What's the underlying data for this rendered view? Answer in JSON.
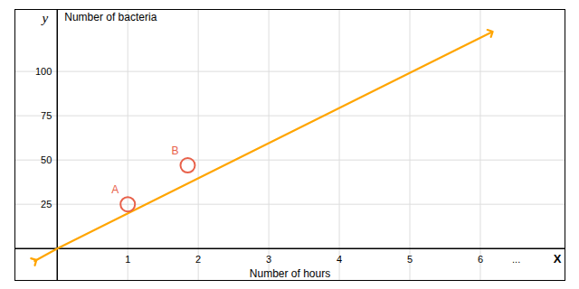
{
  "chart_data": {
    "type": "line",
    "xlabel": "Number of hours",
    "ylabel": "Number of bacteria",
    "xlim": [
      -0.6,
      7.2
    ],
    "ylim": [
      -18,
      135
    ],
    "xticks": [
      1,
      2,
      3,
      4,
      5,
      6
    ],
    "yticks": [
      25,
      50,
      75,
      100
    ],
    "grid": true,
    "series": [
      {
        "type": "line",
        "color": "#FFA500",
        "marker": "arrow",
        "x": [
          -0.32,
          0,
          6.15
        ],
        "values": [
          -7,
          0,
          122
        ]
      },
      {
        "type": "scatter",
        "color": "#e8614a",
        "marker": "circle",
        "x": [
          1.0,
          1.85
        ],
        "values": [
          25,
          47
        ],
        "labels": [
          "A",
          "B"
        ]
      }
    ],
    "annotations": [
      {
        "text": "X",
        "x": 7.2,
        "y": 0
      },
      {
        "text": "y",
        "x": 0,
        "y": 135
      },
      {
        "text": "...",
        "x": 6.45,
        "y": 0
      }
    ]
  }
}
